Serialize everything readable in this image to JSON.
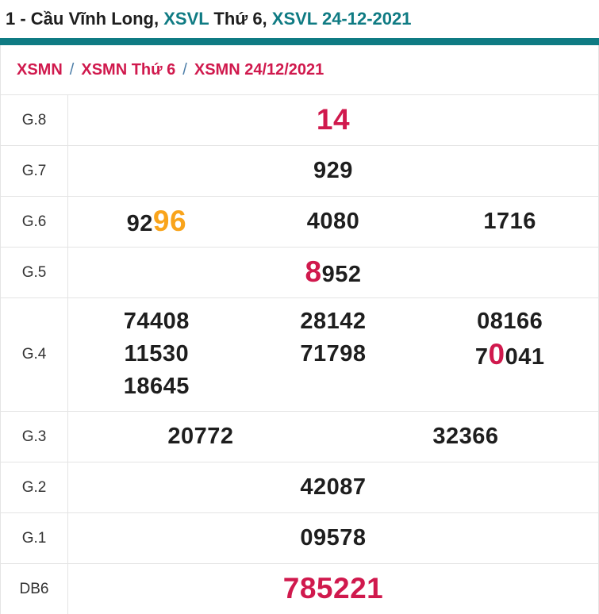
{
  "colors": {
    "teal": "#0f7b83",
    "red": "#d0194d",
    "orange": "#f9a41b",
    "slash": "#4d7ea8",
    "border": "#e4e4e4"
  },
  "title": {
    "parts": [
      {
        "text": "1 - Cầu Vĩnh Long, "
      },
      {
        "text": "XSVL"
      },
      {
        "text": " Thứ 6, "
      },
      {
        "text": "XSVL 24-12-2021"
      }
    ]
  },
  "breadcrumb": {
    "items": [
      "XSMN",
      "XSMN Thứ 6",
      "XSMN 24/12/2021"
    ],
    "separator": "/"
  },
  "prize_table": {
    "rows": [
      {
        "label": "G.8",
        "cols": 1,
        "values": [
          [
            {
              "t": "14",
              "h": "red"
            }
          ]
        ]
      },
      {
        "label": "G.7",
        "cols": 1,
        "values": [
          [
            {
              "t": "929"
            }
          ]
        ]
      },
      {
        "label": "G.6",
        "cols": 3,
        "values": [
          [
            {
              "t": "92"
            },
            {
              "t": "96",
              "h": "orange"
            }
          ],
          [
            {
              "t": "4080"
            }
          ],
          [
            {
              "t": "1716"
            }
          ]
        ]
      },
      {
        "label": "G.5",
        "cols": 1,
        "values": [
          [
            {
              "t": "8",
              "h": "red"
            },
            {
              "t": "952"
            }
          ]
        ]
      },
      {
        "label": "G.4",
        "cols": 3,
        "tall": true,
        "values": [
          [
            {
              "t": "74408"
            }
          ],
          [
            {
              "t": "28142"
            }
          ],
          [
            {
              "t": "08166"
            }
          ],
          [
            {
              "t": "11530"
            }
          ],
          [
            {
              "t": "71798"
            }
          ],
          [
            {
              "t": "7"
            },
            {
              "t": "0",
              "h": "red"
            },
            {
              "t": "041"
            }
          ],
          [
            {
              "t": "18645"
            }
          ]
        ]
      },
      {
        "label": "G.3",
        "cols": 2,
        "values": [
          [
            {
              "t": "20772"
            }
          ],
          [
            {
              "t": "32366"
            }
          ]
        ]
      },
      {
        "label": "G.2",
        "cols": 1,
        "values": [
          [
            {
              "t": "42087"
            }
          ]
        ]
      },
      {
        "label": "G.1",
        "cols": 1,
        "values": [
          [
            {
              "t": "09578"
            }
          ]
        ]
      },
      {
        "label": "DB6",
        "cols": 1,
        "last": true,
        "values": [
          [
            {
              "t": "785221",
              "h": "red"
            }
          ]
        ]
      }
    ]
  }
}
